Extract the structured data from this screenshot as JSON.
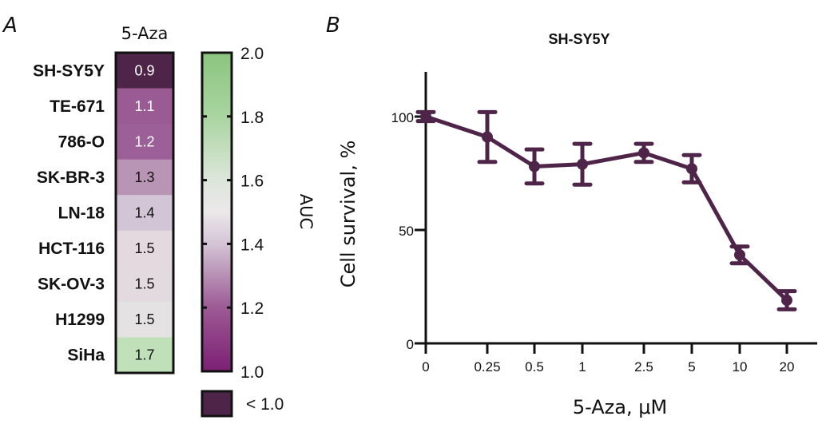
{
  "chart_data": [
    {
      "type": "heatmap",
      "panel_label": "A",
      "column_label": "5-Aza",
      "rows": [
        "SH-SY5Y",
        "TE-671",
        "786-O",
        "SK-BR-3",
        "LN-18",
        "HCT-116",
        "SK-OV-3",
        "H1299",
        "SiHa"
      ],
      "values": [
        0.9,
        1.1,
        1.2,
        1.3,
        1.4,
        1.5,
        1.5,
        1.5,
        1.7
      ],
      "value_labels": [
        "0.9",
        "1.1",
        "1.2",
        "1.3",
        "1.4",
        "1.5",
        "1.5",
        "1.5",
        "1.7"
      ],
      "cell_colors": [
        "#4f2449",
        "#9a5a94",
        "#9d5f97",
        "#b995b5",
        "#d2c5d5",
        "#e3d9df",
        "#e3dadf",
        "#e4e2e3",
        "#bfe0b9"
      ],
      "colorbar": {
        "label": "AUC",
        "range": [
          1.0,
          2.0
        ],
        "ticks": [
          2.0,
          1.8,
          1.6,
          1.4,
          1.2,
          1.0
        ],
        "tick_labels": [
          "2.0",
          "1.8",
          "1.6",
          "1.4",
          "1.2",
          "1.0"
        ],
        "stops": [
          {
            "value": 1.0,
            "color": "#7d1f74"
          },
          {
            "value": 1.2,
            "color": "#9c5a94"
          },
          {
            "value": 1.4,
            "color": "#d4c4d6"
          },
          {
            "value": 1.5,
            "color": "#ebe8ea"
          },
          {
            "value": 1.6,
            "color": "#dde6db"
          },
          {
            "value": 1.8,
            "color": "#a9d5a0"
          },
          {
            "value": 2.0,
            "color": "#8cc47f"
          }
        ],
        "below_range": {
          "label": "< 1.0",
          "color": "#4f2449"
        }
      }
    },
    {
      "type": "line",
      "panel_label": "B",
      "title": "SH-SY5Y",
      "xlabel": "5-Aza, μM",
      "ylabel": "Cell survival, %",
      "x_categories": [
        "0",
        "0.25",
        "0.5",
        "1",
        "2.5",
        "5",
        "10",
        "20"
      ],
      "ylim": [
        0,
        120
      ],
      "y_ticks": [
        0,
        50,
        100
      ],
      "y_tick_labels": [
        "0",
        "50",
        "100"
      ],
      "series": [
        {
          "name": "SH-SY5Y",
          "color": "#4f2449",
          "values": [
            100,
            91,
            78,
            79,
            84,
            77,
            39,
            19
          ],
          "errors": [
            2,
            11,
            7.5,
            9,
            4,
            6,
            3.7,
            4
          ]
        }
      ],
      "grid": false
    }
  ]
}
